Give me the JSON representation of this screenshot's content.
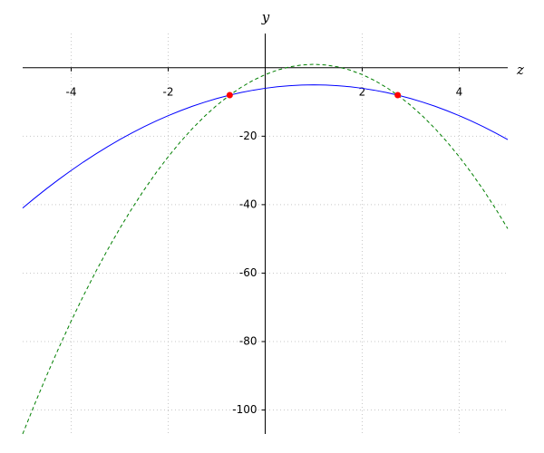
{
  "chart_data": {
    "type": "line",
    "x_label": "z",
    "y_label": "y",
    "xlim": [
      -5,
      5
    ],
    "ylim": [
      -107,
      10
    ],
    "xticks": [
      -4,
      -2,
      2,
      4
    ],
    "yticks": [
      -20,
      -40,
      -60,
      -80,
      -100
    ],
    "grid": true,
    "x": [
      -5,
      -4.75,
      -4.5,
      -4.25,
      -4,
      -3.75,
      -3.5,
      -3.25,
      -3,
      -2.75,
      -2.5,
      -2.25,
      -2,
      -1.75,
      -1.5,
      -1.25,
      -1,
      -0.75,
      -0.5,
      -0.25,
      0,
      0.25,
      0.5,
      0.75,
      1,
      1.25,
      1.5,
      1.75,
      2,
      2.25,
      2.5,
      2.75,
      3,
      3.25,
      3.5,
      3.75,
      4,
      4.25,
      4.5,
      4.75,
      5
    ],
    "series": [
      {
        "color": "#0000ff",
        "style": "solid",
        "values": [
          -41,
          -38.0625,
          -35.25,
          -32.5625,
          -30,
          -27.5625,
          -25.25,
          -23.0625,
          -21,
          -19.0625,
          -17.25,
          -15.5625,
          -14,
          -12.5625,
          -11.25,
          -10.0625,
          -9,
          -8.0625,
          -7.25,
          -6.5625,
          -6,
          -5.5625,
          -5.25,
          -5.0625,
          -5,
          -5.0625,
          -5.25,
          -5.5625,
          -6,
          -6.5625,
          -7.25,
          -8.0625,
          -9,
          -10.0625,
          -11.25,
          -12.5625,
          -14,
          -15.5625,
          -17.25,
          -19.0625,
          -21
        ]
      },
      {
        "color": "#007f00",
        "style": "dashed",
        "values": [
          -107,
          -98.1875,
          -89.75,
          -81.6875,
          -74,
          -66.6875,
          -59.75,
          -53.1875,
          -47,
          -41.1875,
          -35.75,
          -30.6875,
          -26,
          -21.6875,
          -17.75,
          -14.1875,
          -11,
          -8.1875,
          -5.75,
          -3.6875,
          -2,
          -0.6875,
          0.25,
          0.8125,
          1,
          0.8125,
          0.25,
          -0.6875,
          -2,
          -3.6875,
          -5.75,
          -8.1875,
          -11,
          -14.1875,
          -17.75,
          -21.6875,
          -26,
          -30.6875,
          -35.75,
          -41.1875,
          -47
        ]
      }
    ],
    "markers": {
      "color": "#ff0000",
      "x": [
        -0.732,
        2.732
      ],
      "values": [
        -8,
        -8
      ]
    }
  }
}
